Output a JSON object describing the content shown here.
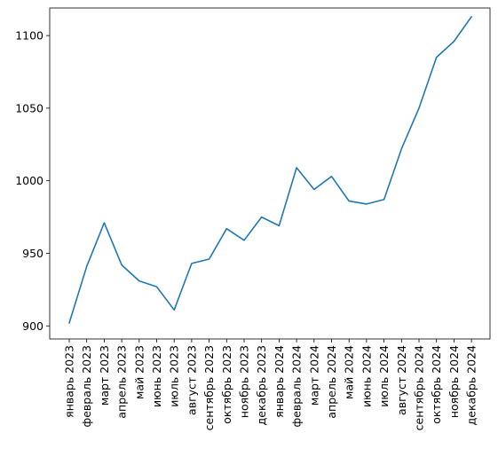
{
  "chart_data": {
    "type": "line",
    "title": "",
    "xlabel": "",
    "ylabel": "",
    "categories": [
      "январь 2023",
      "февраль 2023",
      "март 2023",
      "апрель 2023",
      "май 2023",
      "июнь 2023",
      "июль 2023",
      "август 2023",
      "сентябрь 2023",
      "октябрь 2023",
      "ноябрь 2023",
      "декабрь 2023",
      "январь 2024",
      "февраль 2024",
      "март 2024",
      "апрель 2024",
      "май 2024",
      "июнь 2024",
      "июль 2024",
      "август 2024",
      "сентябрь 2024",
      "октябрь 2024",
      "ноябрь 2024",
      "декабрь 2024"
    ],
    "series": [
      {
        "values": [
          902,
          941,
          971,
          942,
          931,
          927,
          911,
          943,
          946,
          967,
          959,
          975,
          969,
          1009,
          994,
          1003,
          986,
          984,
          987,
          1022,
          1050,
          1085,
          1096,
          1113
        ],
        "color": "#1f77b4"
      }
    ],
    "yticks": [
      900,
      950,
      1000,
      1050,
      1100
    ],
    "ylim": [
      891,
      1119
    ],
    "grid": false,
    "legend": "none"
  }
}
